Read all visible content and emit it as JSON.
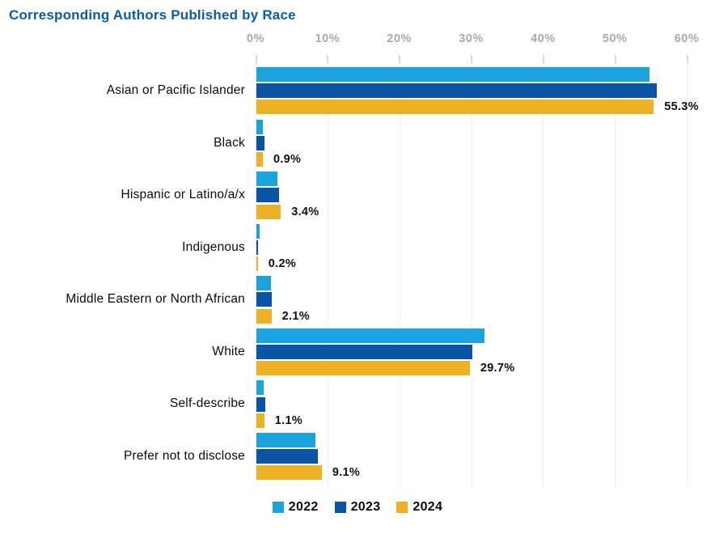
{
  "header": {
    "title": "Corresponding Authors Published by Race",
    "title_color": "#0B5CA8"
  },
  "colors": {
    "series_2022": "#1BA3DE",
    "series_2023": "#0A54A5",
    "series_2024": "#EDB123",
    "axis_text": "#A7A9AC",
    "gridline": "#EFEFEF",
    "grid_tick": "#D9D9D9",
    "value_label_text": "#111111",
    "category_text": "#0B0B0B"
  },
  "chart_data": {
    "type": "bar",
    "orientation": "horizontal",
    "title": "Corresponding Authors Published by Race",
    "categories": [
      "Asian or Pacific Islander",
      "Black",
      "Hispanic or Latino/a/x",
      "Indigenous",
      "Middle Eastern or North African",
      "White",
      "Self-describe",
      "Prefer not to disclose"
    ],
    "series": [
      {
        "name": "2022",
        "color": "#1BA3DE",
        "values": [
          54.7,
          0.9,
          2.9,
          0.4,
          2.0,
          31.8,
          1.0,
          8.2
        ]
      },
      {
        "name": "2023",
        "color": "#0A54A5",
        "values": [
          55.7,
          1.1,
          3.1,
          0.2,
          2.1,
          30.0,
          1.2,
          8.6
        ]
      },
      {
        "name": "2024",
        "color": "#EDB123",
        "values": [
          55.3,
          0.9,
          3.4,
          0.2,
          2.1,
          29.7,
          1.1,
          9.1
        ],
        "data_labels": [
          "55.3%",
          "0.9%",
          "3.4%",
          "0.2%",
          "2.1%",
          "29.7%",
          "1.1%",
          "9.1%"
        ]
      }
    ],
    "x_axis": {
      "min": 0,
      "max": 60,
      "ticks": [
        "0%",
        "10%",
        "20%",
        "30%",
        "40%",
        "50%",
        "60%"
      ],
      "position": "top",
      "grid": true
    },
    "legend": {
      "position": "bottom",
      "entries": [
        "2022",
        "2023",
        "2024"
      ]
    }
  }
}
